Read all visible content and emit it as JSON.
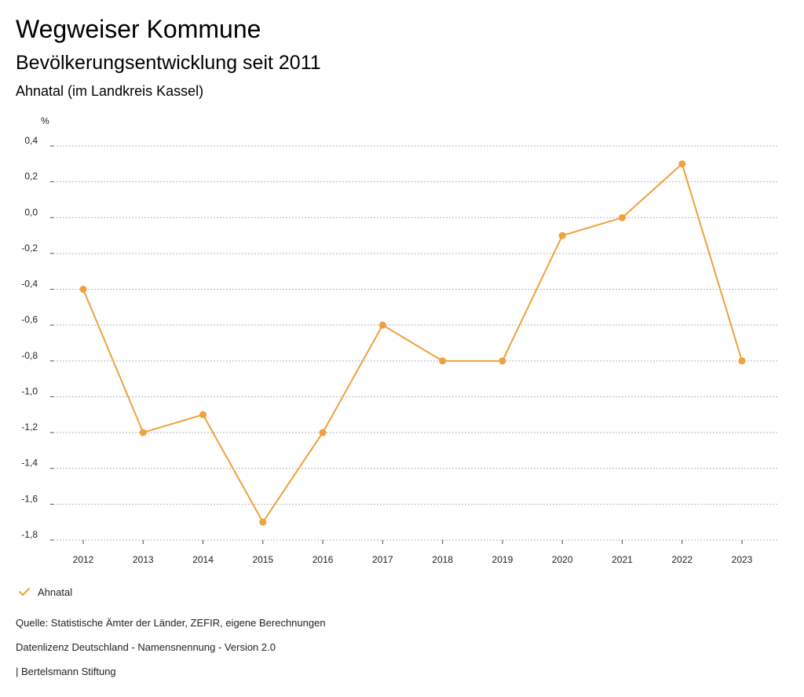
{
  "header": {
    "title": "Wegweiser Kommune",
    "subtitle": "Bevölkerungsentwicklung seit 2011",
    "place": "Ahnatal (im Landkreis Kassel)"
  },
  "colors": {
    "series": "#f0a03c",
    "grid": "#b4b4b4",
    "axis": "#444444"
  },
  "chart_data": {
    "type": "line",
    "title": "Bevölkerungsentwicklung seit 2011",
    "ylabel": "%",
    "xlabel": "",
    "x": [
      2012,
      2013,
      2014,
      2015,
      2016,
      2017,
      2018,
      2019,
      2020,
      2021,
      2022,
      2023
    ],
    "ylim": [
      -1.8,
      0.4
    ],
    "yticks": [
      "0,4",
      "0,2",
      "0,0",
      "-0,2",
      "-0,4",
      "-0,6",
      "-0,8",
      "-1,0",
      "-1,2",
      "-1,4",
      "-1,6",
      "-1,8"
    ],
    "grid": true,
    "legend_position": "bottom-left",
    "series": [
      {
        "name": "Ahnatal",
        "values": [
          -0.4,
          -1.2,
          -1.1,
          -1.7,
          -1.2,
          -0.6,
          -0.8,
          -0.8,
          -0.1,
          0.0,
          0.3,
          -0.8
        ]
      }
    ]
  },
  "legend": {
    "label": "Ahnatal"
  },
  "footer": {
    "source": "Quelle: Statistische Ämter der Länder, ZEFIR, eigene Berechnungen",
    "license": "Datenlizenz Deutschland - Namensnennung - Version 2.0",
    "publisher": "| Bertelsmann Stiftung"
  }
}
